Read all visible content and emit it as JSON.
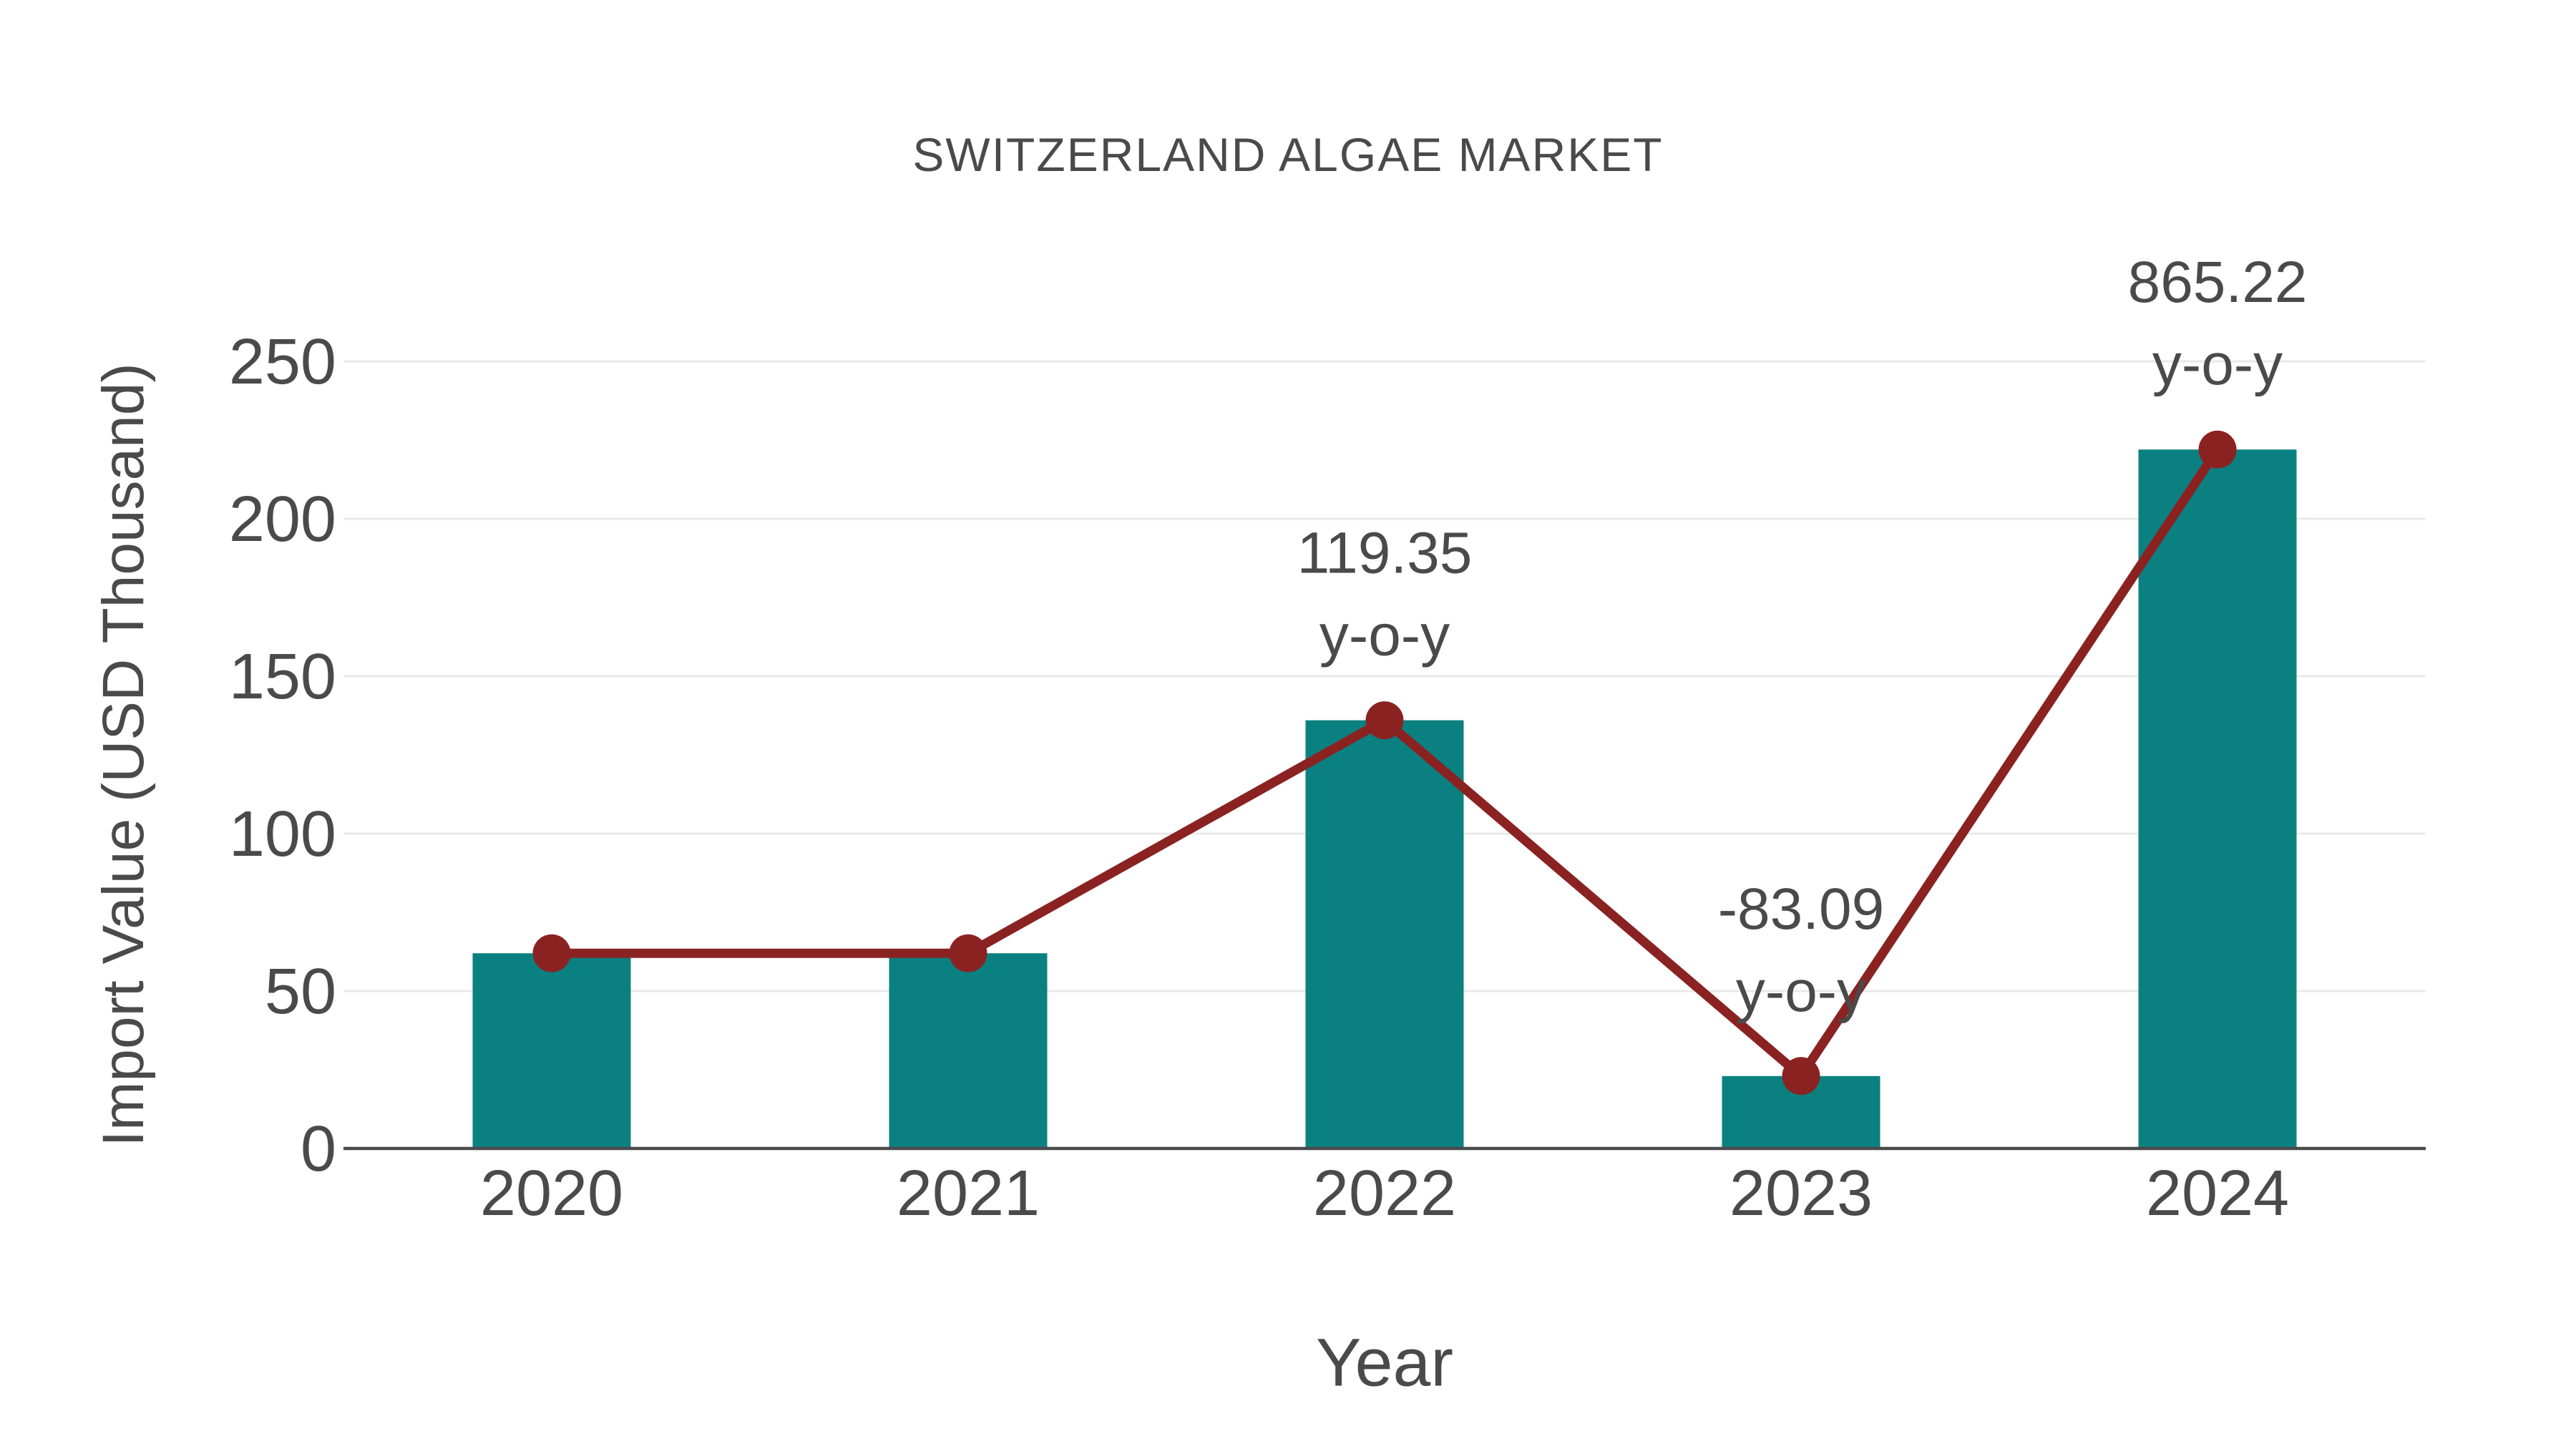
{
  "header": {
    "title": "SWITZERLAND ALGAE MARKET"
  },
  "chart_data": {
    "type": "bar",
    "title": "SWITZERLAND ALGAE MARKET",
    "xlabel": "Year",
    "ylabel": "Import Value (USD Thousand)",
    "categories": [
      "2020",
      "2021",
      "2022",
      "2023",
      "2024"
    ],
    "series": [
      {
        "name": "Import Value (USD Thousand)",
        "type": "bar",
        "values": [
          62,
          62,
          136,
          23,
          222
        ]
      },
      {
        "name": "y-o-y trend line",
        "type": "line",
        "values": [
          62,
          62,
          136,
          23,
          222
        ]
      }
    ],
    "annotations": [
      {
        "category": "2022",
        "value_text": "119.35",
        "label_text": "y-o-y"
      },
      {
        "category": "2023",
        "value_text": "-83.09",
        "label_text": "y-o-y"
      },
      {
        "category": "2024",
        "value_text": "865.22",
        "label_text": "y-o-y"
      }
    ],
    "yticks": [
      0,
      50,
      100,
      150,
      200,
      250
    ],
    "ylim": [
      0,
      250
    ],
    "grid": true,
    "legend_position": "none",
    "colors": {
      "bar": "#0a8180",
      "line": "#8b2222",
      "marker": "#8b2222",
      "text": "#4a4a4a",
      "grid": "#e9e9e9",
      "axis": "#4a4a4a"
    }
  }
}
